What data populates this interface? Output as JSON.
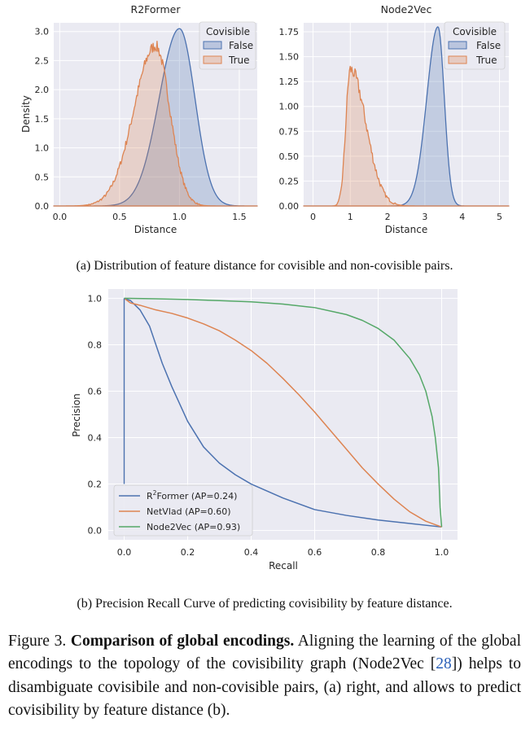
{
  "colors": {
    "false_series": "#4c72b0",
    "true_series": "#dd8452",
    "node2vec": "#55a868",
    "panel_bg": "#eaeaf2",
    "grid": "#ffffff"
  },
  "chart_data": [
    {
      "type": "area",
      "title": "R2Former",
      "xlabel": "Distance",
      "ylabel": "Density",
      "xlim": [
        -0.05,
        1.65
      ],
      "ylim": [
        0,
        3.15
      ],
      "xticks": [
        "0.0",
        "0.5",
        "1.0",
        "1.5"
      ],
      "yticks": [
        "0.0",
        "0.5",
        "1.0",
        "1.5",
        "2.0",
        "2.5",
        "3.0"
      ],
      "legend_title": "Covisible",
      "legend_position": "top-right",
      "series": [
        {
          "name": "False",
          "peak_x": 1.0,
          "peak_density": 3.05,
          "spread_left": 0.17,
          "spread_right": 0.13
        },
        {
          "name": "True",
          "peak_x": 0.8,
          "peak_density": 2.75,
          "spread_left": 0.18,
          "spread_right": 0.12
        }
      ]
    },
    {
      "type": "area",
      "title": "Node2Vec",
      "xlabel": "Distance",
      "ylabel": "",
      "xlim": [
        -0.25,
        5.25
      ],
      "ylim": [
        0,
        1.84
      ],
      "xticks": [
        "0",
        "1",
        "2",
        "3",
        "4",
        "5"
      ],
      "yticks": [
        "0.00",
        "0.25",
        "0.50",
        "0.75",
        "1.00",
        "1.25",
        "1.50",
        "1.75"
      ],
      "legend_title": "Covisible",
      "legend_position": "top-right",
      "series": [
        {
          "name": "False",
          "peak_x": 3.35,
          "peak_density": 1.8,
          "spread_left": 0.3,
          "spread_right": 0.17
        },
        {
          "name": "True",
          "peak_x": 1.0,
          "peak_density": 1.37,
          "spread_left": 0.12,
          "spread_right": 0.42
        }
      ]
    },
    {
      "type": "line",
      "title": "",
      "xlabel": "Recall",
      "ylabel": "Precision",
      "xlim": [
        -0.05,
        1.05
      ],
      "ylim": [
        -0.04,
        1.04
      ],
      "xticks": [
        "0.0",
        "0.2",
        "0.4",
        "0.6",
        "0.8",
        "1.0"
      ],
      "yticks": [
        "0.0",
        "0.2",
        "0.4",
        "0.6",
        "0.8",
        "1.0"
      ],
      "legend_position": "lower-left",
      "series": [
        {
          "name_prefix": "R",
          "name_sup": "2",
          "name_rest": "Former (AP=0.24)",
          "x": [
            0.0,
            0.02,
            0.05,
            0.08,
            0.1,
            0.12,
            0.15,
            0.2,
            0.25,
            0.3,
            0.35,
            0.4,
            0.5,
            0.6,
            0.7,
            0.8,
            0.9,
            1.0
          ],
          "y": [
            1.0,
            0.99,
            0.95,
            0.88,
            0.8,
            0.72,
            0.62,
            0.47,
            0.36,
            0.29,
            0.24,
            0.2,
            0.14,
            0.09,
            0.065,
            0.045,
            0.03,
            0.015
          ]
        },
        {
          "name_prefix": "NetVlad (AP=0.60)",
          "name_sup": "",
          "name_rest": "",
          "x": [
            0.0,
            0.02,
            0.05,
            0.1,
            0.15,
            0.2,
            0.25,
            0.3,
            0.35,
            0.4,
            0.45,
            0.5,
            0.55,
            0.6,
            0.65,
            0.7,
            0.75,
            0.8,
            0.85,
            0.9,
            0.95,
            1.0
          ],
          "y": [
            1.0,
            0.98,
            0.97,
            0.95,
            0.935,
            0.915,
            0.89,
            0.86,
            0.82,
            0.775,
            0.72,
            0.655,
            0.585,
            0.51,
            0.43,
            0.35,
            0.27,
            0.2,
            0.135,
            0.08,
            0.04,
            0.015
          ]
        },
        {
          "name_prefix": "Node2Vec (AP=0.93)",
          "name_sup": "",
          "name_rest": "",
          "x": [
            0.0,
            0.1,
            0.2,
            0.3,
            0.4,
            0.5,
            0.6,
            0.7,
            0.75,
            0.8,
            0.85,
            0.9,
            0.93,
            0.95,
            0.97,
            0.98,
            0.99,
            0.995,
            1.0
          ],
          "y": [
            1.0,
            0.998,
            0.995,
            0.99,
            0.985,
            0.975,
            0.96,
            0.93,
            0.905,
            0.87,
            0.82,
            0.74,
            0.67,
            0.6,
            0.49,
            0.4,
            0.27,
            0.1,
            0.015
          ]
        }
      ]
    }
  ],
  "captions": {
    "a": "(a) Distribution of feature distance for covisible and non-covisible pairs.",
    "b": "(b) Precision Recall Curve of predicting covisibility by feature distance."
  },
  "figure_caption": {
    "label": "Figure 3.",
    "bold": "Comparison of global encodings.",
    "text1": "Aligning the learning of the global encodings to the topology of the covisibility graph (Node2Vec [",
    "ref": "28",
    "text2": "]) helps to disambiguate covisibile and non-covisible pairs, (a) right, and allows to predict covisibility by feature distance (b)."
  }
}
